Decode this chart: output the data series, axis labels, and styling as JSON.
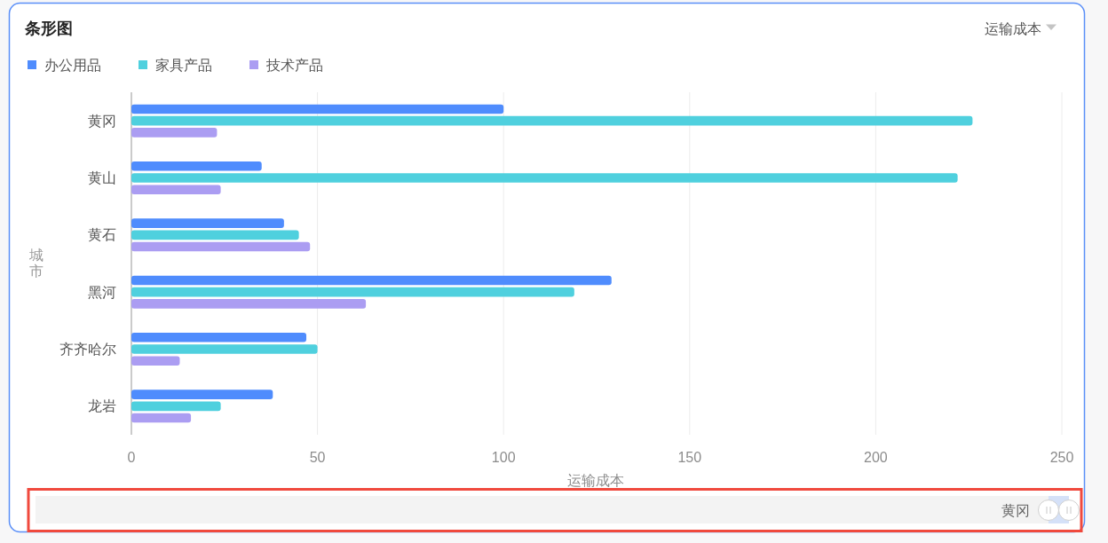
{
  "chart_data": {
    "type": "bar",
    "orientation": "horizontal",
    "title": "条形图",
    "categories": [
      "黄冈",
      "黄山",
      "黄石",
      "黑河",
      "齐齐哈尔",
      "龙岩"
    ],
    "series": [
      {
        "name": "办公用品",
        "color": "#4f8cfd",
        "values": [
          100,
          35,
          41,
          129,
          47,
          38
        ]
      },
      {
        "name": "家具产品",
        "color": "#4fd0de",
        "values": [
          226,
          222,
          45,
          119,
          50,
          24
        ]
      },
      {
        "name": "技术产品",
        "color": "#ab9df2",
        "values": [
          23,
          24,
          48,
          63,
          13,
          16
        ]
      }
    ],
    "xlabel": "运输成本",
    "ylabel": "城市",
    "xlim": [
      0,
      250
    ],
    "xticks": [
      0,
      50,
      100,
      150,
      200,
      250
    ],
    "grid": "x",
    "legend": "top left",
    "annotations": [
      "运输成本",
      "黄冈"
    ]
  }
}
